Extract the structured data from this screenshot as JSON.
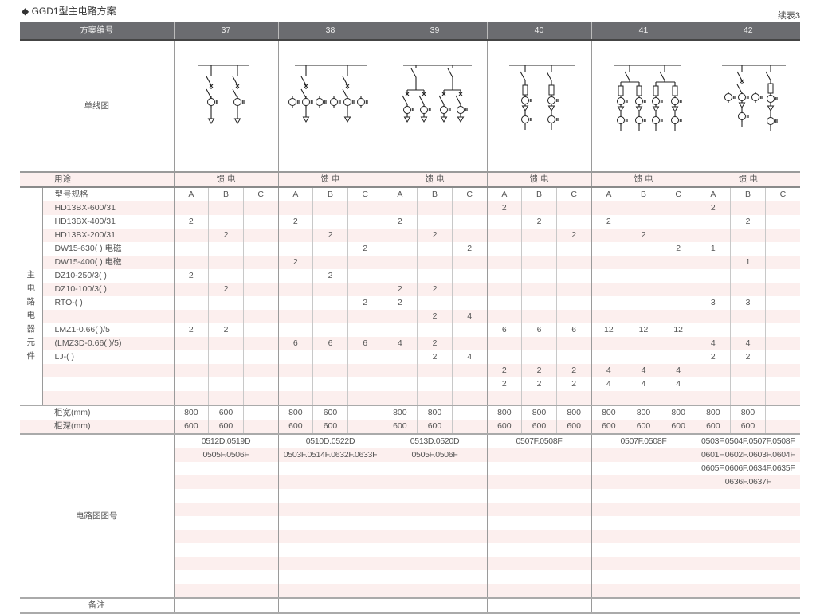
{
  "title": "◆ GGD1型主电路方案",
  "continued": "续表3",
  "header": {
    "label": "方案编号",
    "schemes": [
      "37",
      "38",
      "39",
      "40",
      "41",
      "42"
    ]
  },
  "diagram_label": "单线图",
  "purpose": {
    "label": "用途",
    "values": [
      "馈 电",
      "馈 电",
      "馈 电",
      "馈 电",
      "馈 电",
      "馈 电"
    ]
  },
  "components": {
    "group_label": "主电路电器元件",
    "spec_label": "型号规格",
    "subcols": [
      "A",
      "B",
      "C"
    ],
    "rows": [
      {
        "name": "HD13BX-600/31",
        "values": [
          "",
          "",
          "",
          "",
          "",
          "",
          "",
          "",
          "",
          "2",
          "",
          "",
          "",
          "",
          "",
          "2",
          "",
          ""
        ]
      },
      {
        "name": "HD13BX-400/31",
        "values": [
          "2",
          "",
          "",
          "2",
          "",
          "",
          "2",
          "",
          "",
          "",
          "2",
          "",
          "2",
          "",
          "",
          "",
          "2",
          ""
        ]
      },
      {
        "name": "HD13BX-200/31",
        "values": [
          "",
          "2",
          "",
          "",
          "2",
          "",
          "",
          "2",
          "",
          "",
          "",
          "2",
          "",
          "2",
          "",
          "",
          "",
          ""
        ]
      },
      {
        "name": "DW15-630( )  电磁",
        "values": [
          "",
          "",
          "",
          "",
          "",
          "2",
          "",
          "",
          "2",
          "",
          "",
          "",
          "",
          "",
          "2",
          "1",
          "",
          ""
        ]
      },
      {
        "name": "DW15-400( )  电磁",
        "values": [
          "",
          "",
          "",
          "2",
          "",
          "",
          "",
          "",
          "",
          "",
          "",
          "",
          "",
          "",
          "",
          "",
          "1",
          ""
        ]
      },
      {
        "name": "DZ10-250/3( )",
        "values": [
          "2",
          "",
          "",
          "",
          "2",
          "",
          "",
          "",
          "",
          "",
          "",
          "",
          "",
          "",
          "",
          "",
          "",
          ""
        ]
      },
      {
        "name": "DZ10-100/3( )",
        "values": [
          "",
          "2",
          "",
          "",
          "",
          "",
          "2",
          "2",
          "",
          "",
          "",
          "",
          "",
          "",
          "",
          "",
          "",
          ""
        ]
      },
      {
        "name": "RTO-( )",
        "values": [
          "",
          "",
          "",
          "",
          "",
          "2",
          "2",
          "",
          "",
          "",
          "",
          "",
          "",
          "",
          "",
          "3",
          "3",
          ""
        ]
      },
      {
        "name": "",
        "values": [
          "",
          "",
          "",
          "",
          "",
          "",
          "",
          "2",
          "4",
          "",
          "",
          "",
          "",
          "",
          "",
          "",
          "",
          ""
        ]
      },
      {
        "name": "LMZ1-0.66( )/5",
        "values": [
          "2",
          "2",
          "",
          "",
          "",
          "",
          "",
          "",
          "",
          "6",
          "6",
          "6",
          "12",
          "12",
          "12",
          "",
          "",
          ""
        ]
      },
      {
        "name": "(LMZ3D-0.66( )/5)",
        "values": [
          "",
          "",
          "",
          "6",
          "6",
          "6",
          "4",
          "2",
          "",
          "",
          "",
          "",
          "",
          "",
          "",
          "4",
          "4",
          ""
        ]
      },
      {
        "name": "LJ-( )",
        "values": [
          "",
          "",
          "",
          "",
          "",
          "",
          "",
          "2",
          "4",
          "",
          "",
          "",
          "",
          "",
          "",
          "2",
          "2",
          ""
        ]
      },
      {
        "name": "",
        "values": [
          "",
          "",
          "",
          "",
          "",
          "",
          "",
          "",
          "",
          "2",
          "2",
          "2",
          "4",
          "4",
          "4",
          "",
          "",
          ""
        ]
      },
      {
        "name": "",
        "values": [
          "",
          "",
          "",
          "",
          "",
          "",
          "",
          "",
          "",
          "2",
          "2",
          "2",
          "4",
          "4",
          "4",
          "",
          "",
          ""
        ]
      },
      {
        "name": "",
        "values": [
          "",
          "",
          "",
          "",
          "",
          "",
          "",
          "",
          "",
          "",
          "",
          "",
          "",
          "",
          "",
          "",
          "",
          ""
        ]
      }
    ]
  },
  "cabinet_width": {
    "label": "柜宽(mm)",
    "values": [
      "800",
      "600",
      "",
      "800",
      "600",
      "",
      "800",
      "800",
      "",
      "800",
      "800",
      "800",
      "800",
      "800",
      "800",
      "800",
      "800",
      ""
    ]
  },
  "cabinet_depth": {
    "label": "柜深(mm)",
    "values": [
      "600",
      "600",
      "",
      "600",
      "600",
      "",
      "600",
      "600",
      "",
      "600",
      "600",
      "600",
      "600",
      "600",
      "600",
      "600",
      "600",
      ""
    ]
  },
  "circuit": {
    "label": "电路图图号",
    "schemes": [
      [
        "0512D.0519D",
        "0505F.0506F"
      ],
      [
        "0510D.0522D",
        "0503F.0514F.0632F.0633F"
      ],
      [
        "0513D.0520D",
        "0505F.0506F"
      ],
      [
        "0507F.0508F"
      ],
      [
        "0507F.0508F"
      ],
      [
        "0503F.0504F.0507F.0508F",
        "0601F.0602F.0603F.0604F",
        "0605F.0606F.0634F.0635F",
        "0636F.0637F"
      ]
    ]
  },
  "remarks_label": "备注"
}
